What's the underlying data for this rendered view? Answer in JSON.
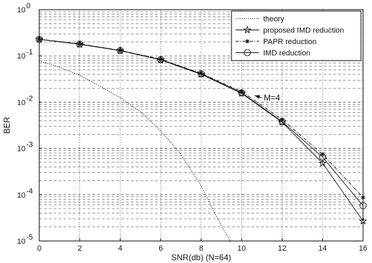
{
  "chart_data": {
    "type": "line",
    "title": "",
    "xlabel": "SNR(db) (N=64)",
    "ylabel": "BER",
    "xlim": [
      0,
      16
    ],
    "ylim": [
      1e-05,
      1
    ],
    "yscale": "log",
    "grid": true,
    "legend_position": "top-right",
    "x_ticks": [
      "0",
      "2",
      "4",
      "6",
      "8",
      "10",
      "12",
      "14",
      "16"
    ],
    "y_ticks": [
      {
        "base": "10",
        "exp": "0",
        "value": 1
      },
      {
        "base": "10",
        "exp": "-1",
        "value": 0.1
      },
      {
        "base": "10",
        "exp": "-2",
        "value": 0.01
      },
      {
        "base": "10",
        "exp": "-3",
        "value": 0.001
      },
      {
        "base": "10",
        "exp": "-4",
        "value": 0.0001
      },
      {
        "base": "10",
        "exp": "-5",
        "value": 1e-05
      }
    ],
    "series": [
      {
        "name": "theory",
        "style": "dotted",
        "marker": "none",
        "x": [
          0,
          1,
          2,
          3,
          4,
          5,
          6,
          7,
          8,
          8.5,
          9,
          9.5
        ],
        "y": [
          0.078,
          0.057,
          0.038,
          0.022,
          0.0125,
          0.0062,
          0.0024,
          0.00075,
          0.000155,
          5.67e-05,
          2.1e-05,
          9e-06
        ]
      },
      {
        "name": "proposed IMD reduction",
        "style": "solid",
        "marker": "pentagram",
        "x": [
          0,
          2,
          4,
          6,
          8,
          10,
          12,
          14,
          16
        ],
        "y": [
          0.23,
          0.178,
          0.13,
          0.082,
          0.04,
          0.0155,
          0.0037,
          0.00048,
          2.7e-05
        ]
      },
      {
        "name": "PAPR reduction",
        "style": "dashdot",
        "marker": "star",
        "x": [
          0,
          2,
          4,
          6,
          8,
          10,
          12,
          14,
          16
        ],
        "y": [
          0.23,
          0.182,
          0.132,
          0.085,
          0.042,
          0.017,
          0.0042,
          0.00075,
          8.7e-05
        ]
      },
      {
        "name": "IMD reduction",
        "style": "solid",
        "marker": "circle",
        "x": [
          0,
          2,
          4,
          6,
          8,
          10,
          12,
          14,
          16
        ],
        "y": [
          0.228,
          0.18,
          0.131,
          0.083,
          0.041,
          0.016,
          0.0038,
          0.00065,
          5.8e-05
        ]
      }
    ],
    "annotations": [
      {
        "text": "M=4",
        "arrow_to": {
          "x": 10.4,
          "y": 0.0155
        }
      }
    ]
  },
  "colors": {
    "background": "#ffffff",
    "axes": "#000000",
    "grid": "#222222",
    "series": "#111111"
  }
}
